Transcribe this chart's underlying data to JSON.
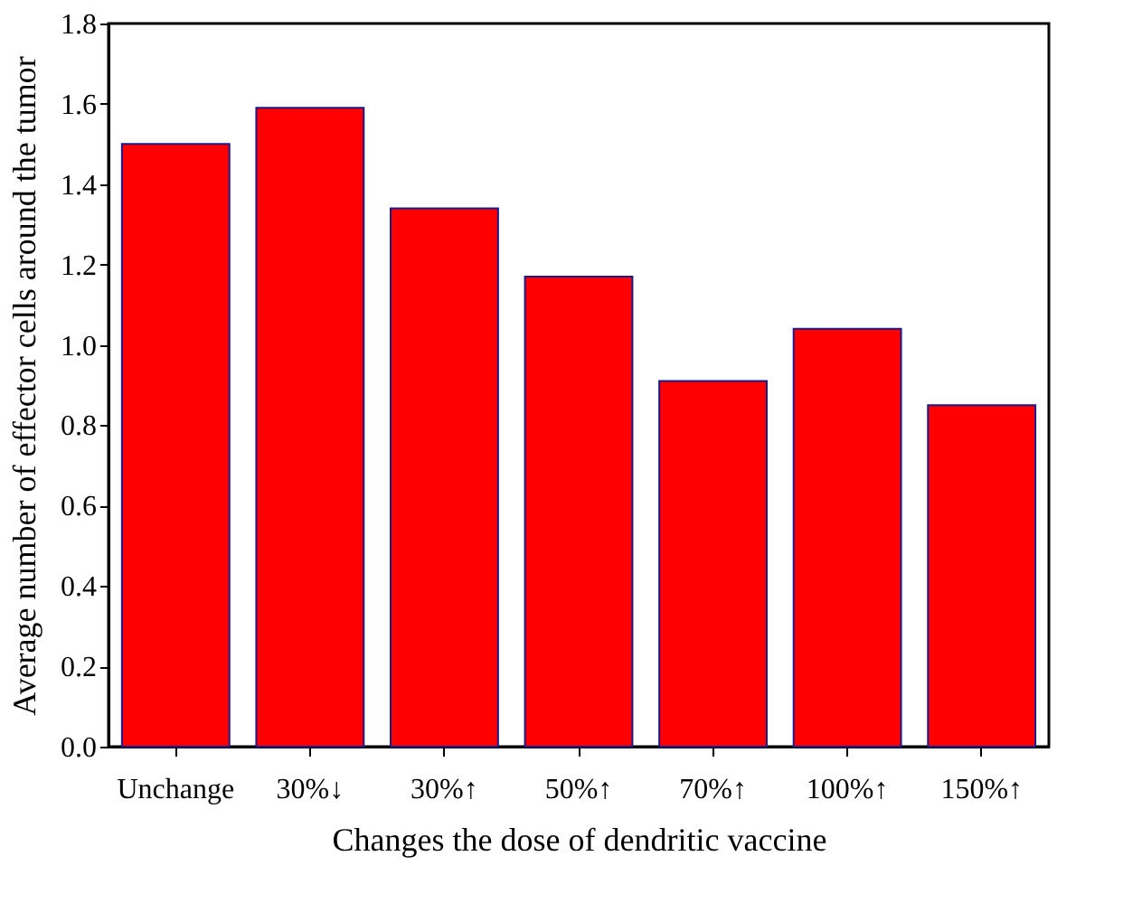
{
  "chart_data": {
    "type": "bar",
    "xlabel": "Changes the dose of dendritic vaccine",
    "ylabel": "Average number of effector cells around the tumor",
    "categories": [
      "Unchange",
      "30%↓",
      "30%↑",
      "50%↑",
      "70%↑",
      "100%↑",
      "150%↑"
    ],
    "values": [
      1.5,
      1.59,
      1.34,
      1.17,
      0.91,
      1.04,
      0.85
    ],
    "color": "#ff0000",
    "ylim": [
      0,
      1.8
    ],
    "yticks": [
      {
        "value": 0,
        "label": "0.0"
      },
      0.2,
      0.4,
      0.6,
      0.8,
      {
        "value": 1,
        "label": "1.0"
      },
      1.2,
      1.4,
      1.6,
      1.8
    ],
    "grid": false
  }
}
